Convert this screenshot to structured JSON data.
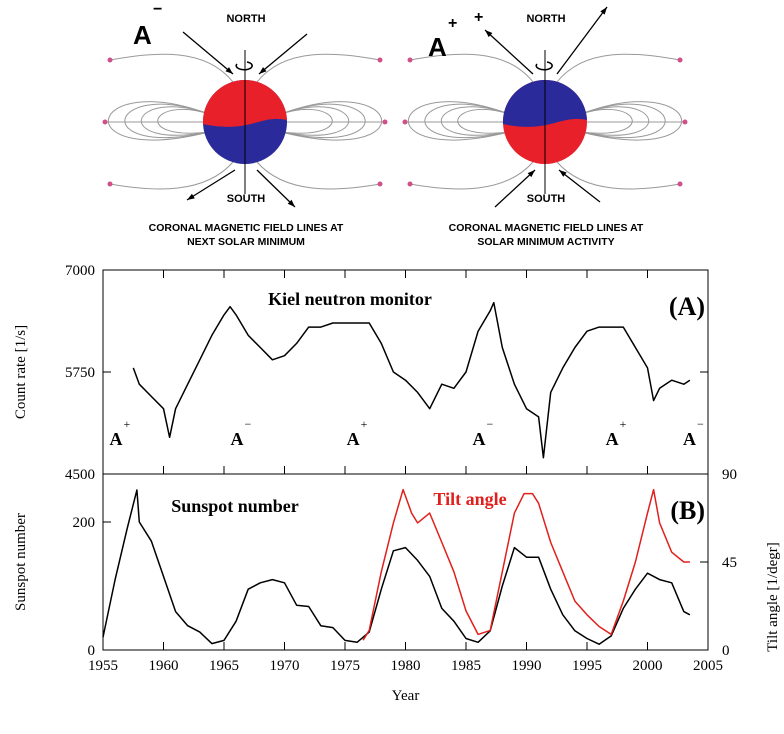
{
  "illustrations": [
    {
      "polarity": "A",
      "sign": "−",
      "north": "NORTH",
      "south": "SOUTH",
      "caption": [
        "CORONAL MAGNETIC FIELD LINES AT",
        "NEXT SOLAR MINIMUM"
      ]
    },
    {
      "polarity": "A",
      "sign": "+",
      "outflow_sign": "+",
      "north": "NORTH",
      "south": "SOUTH",
      "caption": [
        "CORONAL MAGNETIC FIELD LINES AT",
        "SOLAR MINIMUM ACTIVITY"
      ]
    }
  ],
  "chart_data": [
    {
      "type": "line",
      "panel_label": "(A)",
      "ylabel": "Count rate [1/s]",
      "xlim": [
        1955,
        2005
      ],
      "ylim": [
        4500,
        7000
      ],
      "yticks": [
        4500,
        5750,
        7000
      ],
      "series": [
        {
          "name": "Kiel neutron monitor",
          "color": "#000000",
          "x": [
            1957.5,
            1958,
            1959,
            1960,
            1960.5,
            1961,
            1962,
            1963,
            1964,
            1965,
            1965.5,
            1966,
            1967,
            1968,
            1969,
            1970,
            1971,
            1972,
            1973,
            1974,
            1975,
            1976,
            1977,
            1978,
            1979,
            1980,
            1981,
            1982,
            1983,
            1984,
            1985,
            1986,
            1987,
            1987.3,
            1988,
            1989,
            1990,
            1991,
            1991.4,
            1992,
            1993,
            1994,
            1995,
            1996,
            1997,
            1998,
            1999,
            2000,
            2000.5,
            2001,
            2002,
            2003,
            2003.5
          ],
          "values": [
            5800,
            5600,
            5450,
            5300,
            4950,
            5300,
            5600,
            5900,
            6200,
            6450,
            6550,
            6450,
            6200,
            6050,
            5900,
            5950,
            6100,
            6300,
            6300,
            6350,
            6350,
            6350,
            6350,
            6100,
            5750,
            5650,
            5500,
            5300,
            5600,
            5550,
            5750,
            6250,
            6500,
            6600,
            6050,
            5600,
            5300,
            5200,
            4700,
            5500,
            5800,
            6050,
            6250,
            6300,
            6300,
            6300,
            6050,
            5800,
            5400,
            5550,
            5650,
            5600,
            5650
          ]
        }
      ],
      "polarity_labels": [
        {
          "label": "A",
          "sign": "+",
          "x": 1956.2
        },
        {
          "label": "A",
          "sign": "−",
          "x": 1966.2
        },
        {
          "label": "A",
          "sign": "+",
          "x": 1975.8
        },
        {
          "label": "A",
          "sign": "−",
          "x": 1986.2
        },
        {
          "label": "A",
          "sign": "+",
          "x": 1997.2
        },
        {
          "label": "A",
          "sign": "−",
          "x": 2003.6
        }
      ]
    },
    {
      "type": "line",
      "panel_label": "(B)",
      "xlabel": "Year",
      "ylabel": "Sunspot number",
      "y2label": "Tilt angle [1/degr]",
      "xlim": [
        1955,
        2005
      ],
      "xticks": [
        1955,
        1960,
        1965,
        1970,
        1975,
        1980,
        1985,
        1990,
        1995,
        2000,
        2005
      ],
      "ylim": [
        0,
        275
      ],
      "yticks": [
        0,
        200
      ],
      "y2lim": [
        0,
        90
      ],
      "y2ticks": [
        0,
        45,
        90
      ],
      "series": [
        {
          "name": "Sunspot number",
          "color": "#000000",
          "x": [
            1955,
            1956,
            1957,
            1957.8,
            1958,
            1959,
            1960,
            1961,
            1962,
            1963,
            1964,
            1965,
            1966,
            1967,
            1968,
            1969,
            1970,
            1971,
            1972,
            1973,
            1974,
            1975,
            1976,
            1977,
            1978,
            1979,
            1980,
            1981,
            1982,
            1983,
            1984,
            1985,
            1986,
            1987,
            1988,
            1989,
            1990,
            1991,
            1992,
            1993,
            1994,
            1995,
            1996,
            1997,
            1998,
            1999,
            2000,
            2001,
            2002,
            2003,
            2003.5
          ],
          "values": [
            20,
            110,
            190,
            250,
            200,
            170,
            115,
            60,
            38,
            28,
            10,
            15,
            45,
            95,
            105,
            110,
            105,
            70,
            68,
            38,
            35,
            15,
            12,
            28,
            95,
            155,
            160,
            140,
            115,
            65,
            45,
            18,
            12,
            30,
            100,
            160,
            145,
            145,
            95,
            55,
            30,
            18,
            9,
            22,
            65,
            95,
            120,
            110,
            105,
            60,
            55
          ]
        },
        {
          "name": "Tilt angle",
          "color": "#e0201c",
          "axis": "y2",
          "x": [
            1976.5,
            1977,
            1978,
            1979,
            1979.8,
            1980.5,
            1981,
            1982,
            1983,
            1984,
            1985,
            1986,
            1987,
            1988,
            1989,
            1989.8,
            1990.5,
            1991,
            1992,
            1993,
            1994,
            1995,
            1996,
            1997,
            1998,
            1999,
            2000,
            2000.5,
            2001,
            2002,
            2003,
            2003.5
          ],
          "values": [
            5,
            10,
            40,
            65,
            82,
            70,
            65,
            70,
            55,
            40,
            20,
            8,
            10,
            40,
            70,
            80,
            80,
            75,
            55,
            40,
            25,
            18,
            12,
            8,
            25,
            45,
            70,
            82,
            65,
            50,
            45,
            45
          ]
        }
      ]
    }
  ]
}
